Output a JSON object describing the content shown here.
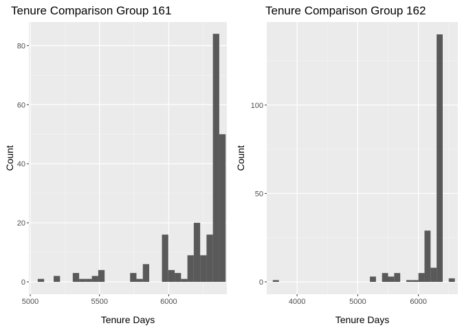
{
  "chart_data": [
    {
      "type": "bar",
      "title": "Tenure Comparison Group 161",
      "xlabel": "Tenure Days",
      "ylabel": "Count",
      "xlim": [
        4990,
        6420
      ],
      "ylim": [
        -4.2,
        88
      ],
      "xticks": [
        5000,
        5500,
        6000
      ],
      "yticks": [
        0,
        20,
        40,
        60,
        80
      ],
      "bin_width": 46,
      "bars": [
        {
          "x": 5077,
          "y": 1
        },
        {
          "x": 5192,
          "y": 2
        },
        {
          "x": 5330,
          "y": 3
        },
        {
          "x": 5376,
          "y": 1
        },
        {
          "x": 5422,
          "y": 1
        },
        {
          "x": 5468,
          "y": 2
        },
        {
          "x": 5514,
          "y": 4
        },
        {
          "x": 5744,
          "y": 3
        },
        {
          "x": 5790,
          "y": 1
        },
        {
          "x": 5836,
          "y": 6
        },
        {
          "x": 5974,
          "y": 16
        },
        {
          "x": 6020,
          "y": 4
        },
        {
          "x": 6066,
          "y": 3
        },
        {
          "x": 6112,
          "y": 1
        },
        {
          "x": 6158,
          "y": 9
        },
        {
          "x": 6204,
          "y": 20
        },
        {
          "x": 6250,
          "y": 9
        },
        {
          "x": 6296,
          "y": 16
        },
        {
          "x": 6342,
          "y": 84
        },
        {
          "x": 6388,
          "y": 50
        }
      ],
      "grid": true,
      "legend": "none"
    },
    {
      "type": "bar",
      "title": "Tenure Comparison Group 162",
      "xlabel": "Tenure Days",
      "ylabel": "Count",
      "xlim": [
        3500,
        6650
      ],
      "ylim": [
        -7,
        147
      ],
      "xticks": [
        4000,
        5000,
        6000
      ],
      "yticks": [
        0,
        50,
        100
      ],
      "bin_width": 100,
      "bars": [
        {
          "x": 3650,
          "y": 1
        },
        {
          "x": 5250,
          "y": 3
        },
        {
          "x": 5450,
          "y": 5
        },
        {
          "x": 5550,
          "y": 3
        },
        {
          "x": 5650,
          "y": 5
        },
        {
          "x": 5850,
          "y": 1
        },
        {
          "x": 5950,
          "y": 1
        },
        {
          "x": 6050,
          "y": 5
        },
        {
          "x": 6150,
          "y": 29
        },
        {
          "x": 6250,
          "y": 8
        },
        {
          "x": 6350,
          "y": 140
        },
        {
          "x": 6550,
          "y": 2
        }
      ],
      "grid": true,
      "legend": "none"
    }
  ]
}
